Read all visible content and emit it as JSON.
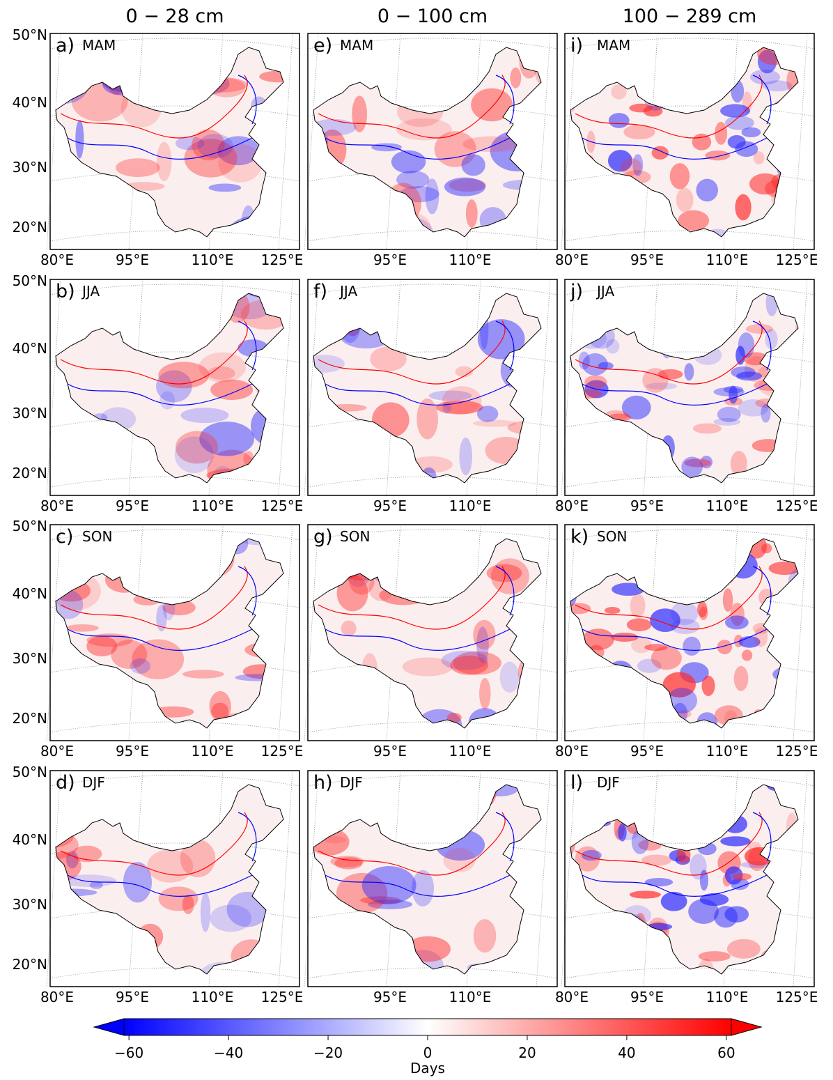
{
  "columns": [
    "0 − 28 cm",
    "0 − 100 cm",
    "100 − 289 cm"
  ],
  "panels": [
    [
      {
        "label": "a)",
        "season": "MAM"
      },
      {
        "label": "b)",
        "season": "JJA"
      },
      {
        "label": "c)",
        "season": "SON"
      },
      {
        "label": "d)",
        "season": "DJF"
      }
    ],
    [
      {
        "label": "e)",
        "season": "MAM"
      },
      {
        "label": "f)",
        "season": "JJA"
      },
      {
        "label": "g)",
        "season": "SON"
      },
      {
        "label": "h)",
        "season": "DJF"
      }
    ],
    [
      {
        "label": "i)",
        "season": "MAM"
      },
      {
        "label": "j)",
        "season": "JJA"
      },
      {
        "label": "k)",
        "season": "SON"
      },
      {
        "label": "l)",
        "season": "DJF"
      }
    ]
  ],
  "lat_labels": [
    "50°N",
    "40°N",
    "30°N",
    "20°N"
  ],
  "lon_labels": [
    "80°E",
    "95°E",
    "110°E",
    "125°E"
  ],
  "colorbar": {
    "label": "Days",
    "lim": [
      -61,
      61
    ],
    "ticks": [
      {
        "value": -60,
        "label": "−60"
      },
      {
        "value": -40,
        "label": "−40"
      },
      {
        "value": -20,
        "label": "−20"
      },
      0,
      20,
      40,
      60
    ]
  }
}
